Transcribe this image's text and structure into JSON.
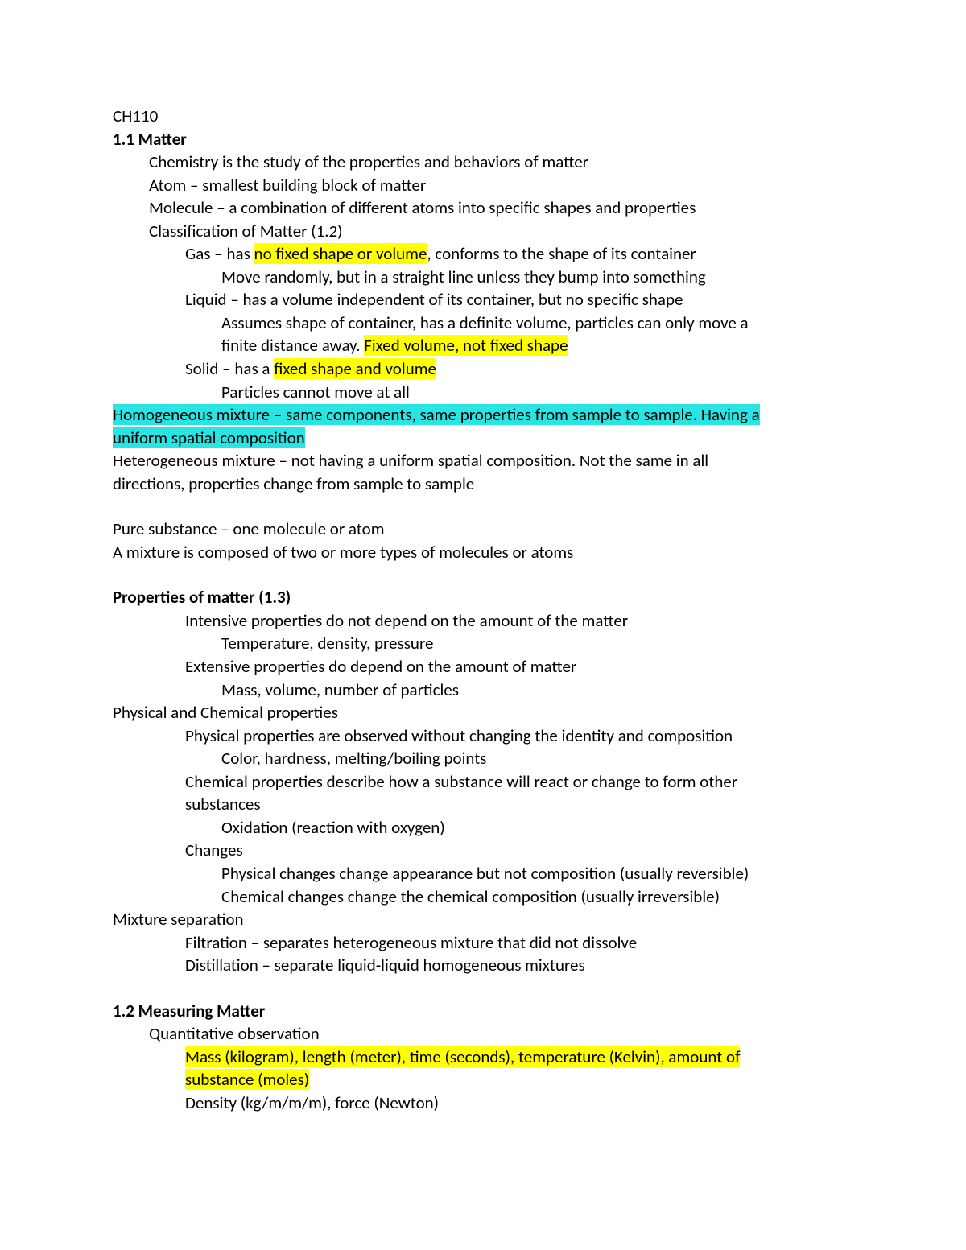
{
  "colors": {
    "text": "#000000",
    "background": "#ffffff",
    "highlight_yellow": "#ffff00",
    "highlight_cyan": "#28e4e2"
  },
  "typography": {
    "font_family": "Calibri",
    "font_size_pt": 15,
    "line_height": 1.36,
    "bold_weight": 700
  },
  "course": "CH110",
  "sec1_title": "1.1 Matter",
  "l_chem": "Chemistry is the study of the properties and behaviors of matter",
  "l_atom": "Atom – smallest building block of matter",
  "l_molecule": "Molecule – a combination of different atoms into specific shapes and properties",
  "l_classif": "Classification of Matter (1.2)",
  "gas_pre": "Gas – has ",
  "gas_hl": "no fixed shape or volume",
  "gas_post": ", conforms to the shape of its container",
  "gas_sub": "Move randomly, but in a straight line unless they bump into something",
  "liquid1": "Liquid – has a volume independent of its container, but no specific shape",
  "liquid2a": "Assumes shape of container, has a definite volume, particles can only move a",
  "liquid2b_pre": "finite distance away. ",
  "liquid2b_hl": "Fixed volume, not fixed shape",
  "solid_pre": "Solid – has a ",
  "solid_hl": "fixed shape and volume",
  "solid_sub": "Particles cannot move at all",
  "homo_l1": "Homogeneous mixture – same components, same properties from sample to sample. Having a",
  "homo_l2": "uniform spatial composition",
  "hetero_l1": "Heterogeneous mixture – not having a uniform spatial composition. Not the same in all",
  "hetero_l2": "directions, properties change from sample to sample",
  "pure": "Pure substance – one molecule or atom",
  "mixture": "A mixture is composed of two or more types of molecules or atoms",
  "props_title": "Properties of matter (1.3)",
  "intensive": "Intensive properties do not depend on the amount of the matter",
  "intensive_ex": "Temperature, density, pressure",
  "extensive": "Extensive properties do depend on the amount of matter",
  "extensive_ex": "Mass, volume, number of particles",
  "physchem_title": "Physical and Chemical properties",
  "phys_prop": "Physical properties are observed without changing the identity and composition",
  "phys_ex": "Color, hardness, melting/boiling points",
  "chem_prop1": "Chemical properties describe how a substance will react or change to form other",
  "chem_prop2": "substances",
  "chem_ex": "Oxidation (reaction with oxygen)",
  "changes": "Changes",
  "phys_change": "Physical changes change appearance but not composition (usually reversible)",
  "chem_change": "Chemical changes change the chemical composition (usually irreversible)",
  "mix_sep": "Mixture separation",
  "filtration": "Filtration – separates heterogeneous mixture that did not dissolve",
  "distillation": "Distillation – separate liquid-liquid homogeneous mixtures",
  "sec2_title": "1.2 Measuring Matter",
  "quant": "Quantitative observation",
  "quant_hl1": "Mass (kilogram), length (meter), time (seconds), temperature (Kelvin), amount of",
  "quant_hl2": "substance (moles)",
  "density": "Density (kg/m/m/m), force (Newton)"
}
